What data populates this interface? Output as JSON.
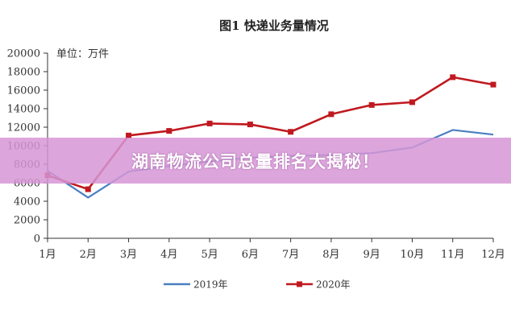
{
  "chart_data": {
    "type": "line",
    "title": "图1 快递业务量情况",
    "unit": "单位：万件",
    "categories": [
      "1月",
      "2月",
      "3月",
      "4月",
      "5月",
      "6月",
      "7月",
      "8月",
      "9月",
      "10月",
      "11月",
      "12月"
    ],
    "ylim": [
      0,
      20000
    ],
    "yticks": [
      0,
      2000,
      4000,
      6000,
      8000,
      10000,
      12000,
      14000,
      16000,
      18000,
      20000
    ],
    "series": [
      {
        "name": "2019年",
        "color": "#4a7fc1",
        "marker": "none",
        "values": [
          7300,
          4400,
          7200,
          7800,
          8300,
          8700,
          8900,
          9000,
          9200,
          9800,
          11700,
          11200
        ]
      },
      {
        "name": "2020年",
        "color": "#c0191f",
        "marker": "square",
        "values": [
          6800,
          5300,
          11100,
          11600,
          12400,
          12300,
          11500,
          13400,
          14400,
          14700,
          17400,
          16600
        ]
      }
    ],
    "legend_position": "bottom",
    "grid": false
  },
  "banner": {
    "text": "湖南物流公司总量排名大揭秘！"
  }
}
